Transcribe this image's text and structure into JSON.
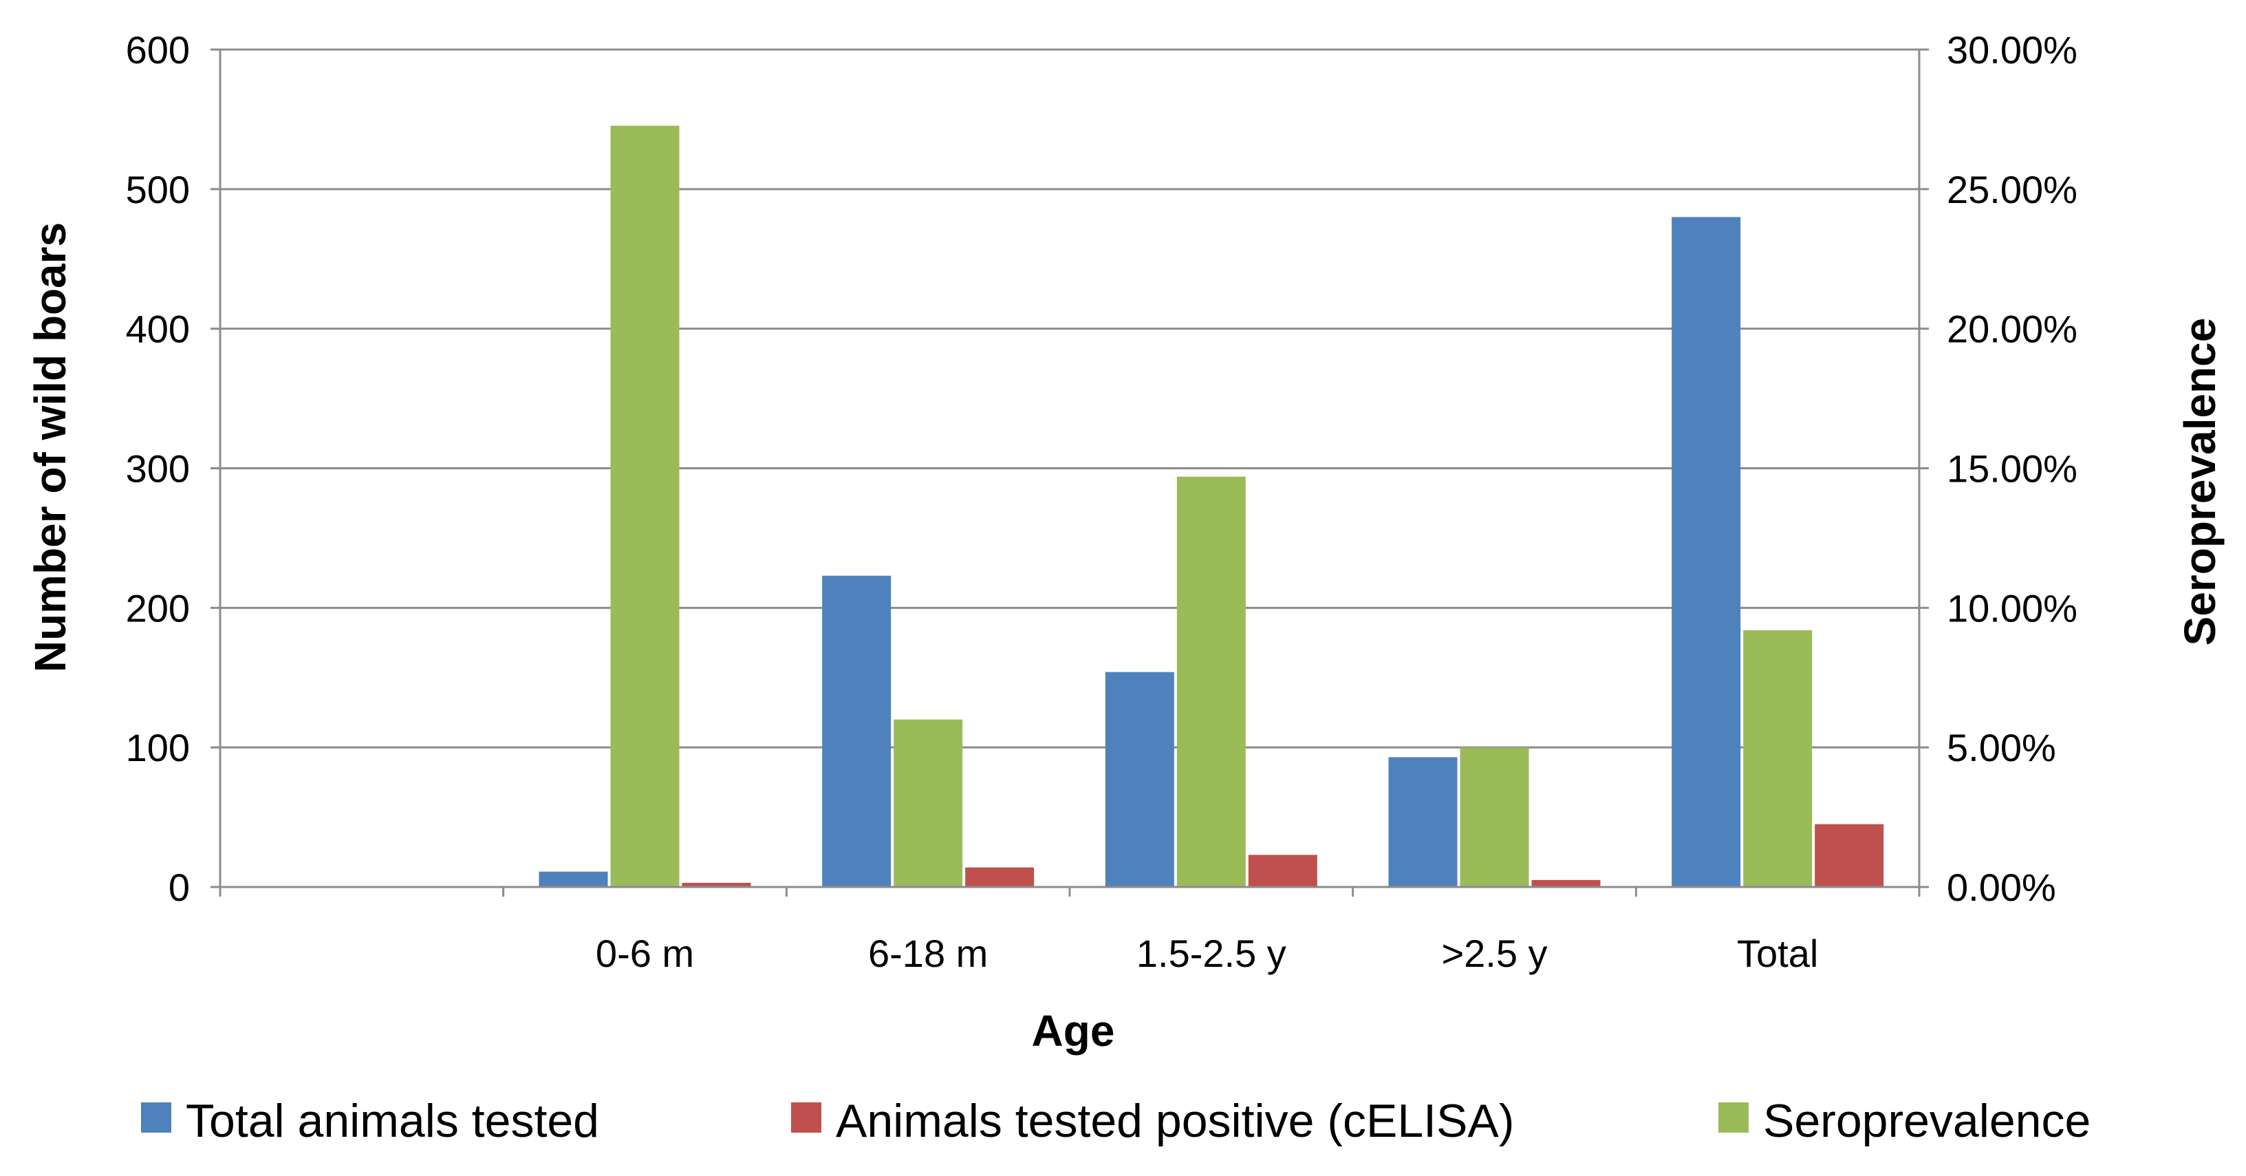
{
  "chart_data": {
    "type": "bar",
    "title": "",
    "xlabel": "Age",
    "ylabel": "Number of wild boars",
    "y2label": "Seroprevalence",
    "categories": [
      "",
      "0-6 m",
      "6-18 m",
      "1.5-2.5 y",
      ">2.5 y",
      "Total"
    ],
    "ylim": [
      0,
      600
    ],
    "y2lim": [
      0,
      0.3
    ],
    "yticks": [
      0,
      100,
      200,
      300,
      400,
      500,
      600
    ],
    "y2ticks": [
      "0.00%",
      "5.00%",
      "10.00%",
      "15.00%",
      "20.00%",
      "25.00%",
      "30.00%"
    ],
    "series": [
      {
        "name": "Total animals tested",
        "axis": "left",
        "color": "#4f81bd",
        "values": [
          null,
          11,
          223,
          154,
          93,
          480
        ]
      },
      {
        "name": "Seroprevalence",
        "axis": "right",
        "color": "#9bbb59",
        "values": [
          null,
          0.2727,
          0.06,
          0.147,
          0.05,
          0.092
        ]
      },
      {
        "name": "Animals tested positive (cELISA)",
        "axis": "left",
        "color": "#c0504d",
        "values": [
          null,
          3,
          14,
          23,
          5,
          45
        ]
      }
    ],
    "legend": {
      "position": "bottom",
      "items": [
        {
          "label": "Total animals tested",
          "color": "#4f81bd"
        },
        {
          "label": "Animals tested positive (cELISA)",
          "color": "#c0504d"
        },
        {
          "label": "Seroprevalence",
          "color": "#9bbb59"
        }
      ]
    },
    "grid": true
  }
}
